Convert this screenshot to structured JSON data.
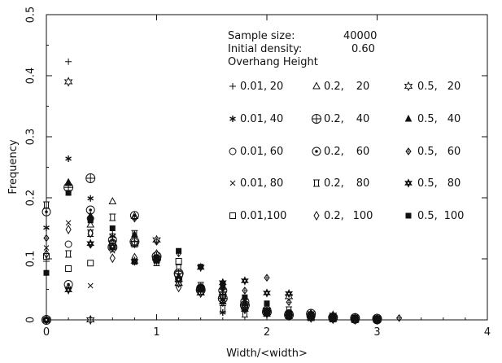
{
  "chart_data": {
    "type": "scatter",
    "xlabel": "Width/<width>",
    "ylabel": "Frequency",
    "xlim": [
      0,
      4
    ],
    "ylim": [
      0,
      0.5
    ],
    "xticks": [
      "0",
      "1",
      "2",
      "3",
      "4"
    ],
    "yticks": [
      "0",
      "0.1",
      "0.2",
      "0.3",
      "0.4",
      "0.5"
    ],
    "grid": false,
    "annotations": {
      "sample_size_label": "Sample size:",
      "sample_size_value": "40000",
      "initial_density_label": "Initial density:",
      "initial_density_value": "0.60",
      "column_header": "Overhang  Height"
    },
    "legend_placement": "top-right",
    "legend_grid": [
      [
        {
          "marker": "plus",
          "overhang": "0.01,",
          "height": "20"
        },
        {
          "marker": "triangle-open",
          "overhang": "0.2,",
          "height": "20"
        },
        {
          "marker": "star-open",
          "overhang": "0.5,",
          "height": "20"
        }
      ],
      [
        {
          "marker": "asterisk",
          "overhang": "0.01,",
          "height": "40"
        },
        {
          "marker": "circle-plus",
          "overhang": "0.2,",
          "height": "40"
        },
        {
          "marker": "triangle-filled",
          "overhang": "0.5,",
          "height": "40"
        }
      ],
      [
        {
          "marker": "circle",
          "overhang": "0.01,",
          "height": "60"
        },
        {
          "marker": "circle-dot",
          "overhang": "0.2,",
          "height": "60"
        },
        {
          "marker": "diamond-plus",
          "overhang": "0.5,",
          "height": "60"
        }
      ],
      [
        {
          "marker": "cross",
          "overhang": "0.01,",
          "height": "80"
        },
        {
          "marker": "hourglass",
          "overhang": "0.2,",
          "height": "80"
        },
        {
          "marker": "star-filled",
          "overhang": "0.5,",
          "height": "80"
        }
      ],
      [
        {
          "marker": "square",
          "overhang": "0.01,",
          "height": "100"
        },
        {
          "marker": "diamond",
          "overhang": "0.2,",
          "height": "100"
        },
        {
          "marker": "square-filled",
          "overhang": "0.5,",
          "height": "100"
        }
      ]
    ],
    "series": [
      {
        "overhang": "0.01",
        "height": "20",
        "marker": "plus",
        "x": [
          0,
          0.2,
          0.4,
          0.6,
          0.8,
          1.0,
          1.2,
          1.4,
          1.6,
          1.8,
          2.0,
          2.2,
          2.4,
          2.6,
          2.8,
          3.0
        ],
        "y": [
          0.096,
          0.423,
          0.0,
          0.141,
          0.097,
          0.098,
          0.07,
          0.048,
          0.04,
          0.017,
          0.008,
          0.005,
          0.002,
          0.0,
          0.0,
          0.0
        ]
      },
      {
        "overhang": "0.01",
        "height": "40",
        "marker": "asterisk",
        "x": [
          0,
          0.2,
          0.4,
          0.6,
          0.8,
          1.0,
          1.2,
          1.4,
          1.6,
          1.8,
          2.0,
          2.2,
          2.4,
          2.6,
          2.8,
          3.0
        ],
        "y": [
          0.151,
          0.264,
          0.199,
          0.137,
          0.098,
          0.095,
          0.068,
          0.05,
          0.012,
          0.025,
          0.01,
          0.007,
          0.003,
          0.001,
          0.0,
          0.0
        ]
      },
      {
        "overhang": "0.01",
        "height": "60",
        "marker": "circle",
        "x": [
          0,
          0.2,
          0.4,
          0.6,
          0.8,
          1.0,
          1.2,
          1.4,
          1.6,
          1.8,
          2.0,
          2.2,
          2.4,
          2.6,
          2.8,
          3.0
        ],
        "y": [
          0.0,
          0.124,
          0.166,
          0.127,
          0.128,
          0.099,
          0.067,
          0.052,
          0.04,
          0.02,
          0.012,
          0.008,
          0.005,
          0.002,
          0.0,
          0.0
        ]
      },
      {
        "overhang": "0.01",
        "height": "80",
        "marker": "cross",
        "x": [
          0,
          0.2,
          0.4,
          0.6,
          0.8,
          1.0,
          1.2,
          1.4,
          1.6,
          1.8,
          2.0,
          2.2,
          2.4,
          2.6,
          2.8,
          3.0
        ],
        "y": [
          0.118,
          0.159,
          0.056,
          0.113,
          0.095,
          0.096,
          0.072,
          0.05,
          0.03,
          0.018,
          0.009,
          0.005,
          0.002,
          0.0,
          0.0,
          0.0
        ]
      },
      {
        "overhang": "0.01",
        "height": "100",
        "marker": "square",
        "x": [
          0,
          0.2,
          0.4,
          0.6,
          0.8,
          1.0,
          1.2,
          1.4,
          1.6,
          1.8,
          2.0,
          2.2,
          2.4,
          2.6,
          2.8,
          3.0
        ],
        "y": [
          0.104,
          0.084,
          0.093,
          0.125,
          0.124,
          0.101,
          0.096,
          0.052,
          0.042,
          0.022,
          0.014,
          0.008,
          0.004,
          0.002,
          0.0,
          0.0
        ]
      },
      {
        "overhang": "0.2",
        "height": "20",
        "marker": "triangle-open",
        "x": [
          0,
          0.2,
          0.4,
          0.6,
          0.8,
          1.0,
          1.2,
          1.4,
          1.6,
          1.8,
          2.0,
          2.2,
          2.4,
          2.6,
          2.8,
          3.0
        ],
        "y": [
          0.0,
          0.225,
          0.156,
          0.194,
          0.17,
          0.103,
          0.06,
          0.045,
          0.03,
          0.018,
          0.01,
          0.006,
          0.003,
          0.001,
          0.0,
          0.0
        ]
      },
      {
        "overhang": "0.2",
        "height": "40",
        "marker": "circle-plus",
        "x": [
          0,
          0.2,
          0.4,
          0.6,
          0.8,
          1.0,
          1.2,
          1.4,
          1.6,
          1.8,
          2.0,
          2.2,
          2.4,
          2.6,
          2.8,
          3.0
        ],
        "y": [
          0.0,
          0.217,
          0.232,
          0.119,
          0.128,
          0.104,
          0.076,
          0.049,
          0.035,
          0.024,
          0.013,
          0.008,
          0.01,
          0.004,
          0.003,
          0.002
        ]
      },
      {
        "overhang": "0.2",
        "height": "60",
        "marker": "circle-dot",
        "x": [
          0,
          0.2,
          0.4,
          0.6,
          0.8,
          1.0,
          1.2,
          1.4,
          1.6,
          1.8,
          2.0,
          2.2,
          2.4,
          2.6,
          2.8,
          3.0
        ],
        "y": [
          0.177,
          0.058,
          0.18,
          0.131,
          0.171,
          0.1,
          0.074,
          0.052,
          0.048,
          0.03,
          0.016,
          0.01,
          0.006,
          0.003,
          0.001,
          0.0
        ]
      },
      {
        "overhang": "0.2",
        "height": "80",
        "marker": "hourglass",
        "x": [
          0,
          0.2,
          0.4,
          0.6,
          0.8,
          1.0,
          1.2,
          1.4,
          1.6,
          1.8,
          2.0,
          2.2,
          2.4,
          2.6,
          2.8,
          3.0
        ],
        "y": [
          0.188,
          0.108,
          0.142,
          0.168,
          0.141,
          0.094,
          0.085,
          0.056,
          0.018,
          0.01,
          0.014,
          0.016,
          0.008,
          0.004,
          0.002,
          0.001
        ]
      },
      {
        "overhang": "0.2",
        "height": "100",
        "marker": "diamond",
        "x": [
          0,
          0.2,
          0.4,
          0.6,
          0.8,
          1.0,
          1.2,
          1.4,
          1.6,
          1.8,
          2.0,
          2.2,
          2.4,
          2.6,
          2.8,
          3.0
        ],
        "y": [
          0.108,
          0.148,
          0.142,
          0.101,
          0.102,
          0.108,
          0.053,
          0.044,
          0.029,
          0.017,
          0.01,
          0.006,
          0.003,
          0.001,
          0.0,
          0.0
        ]
      },
      {
        "overhang": "0.5",
        "height": "20",
        "marker": "star-open",
        "x": [
          0,
          0.2,
          0.4,
          0.6,
          0.8,
          1.0,
          1.2,
          1.4,
          1.6,
          1.8,
          2.0,
          2.2,
          2.4,
          2.6,
          2.8,
          3.0
        ],
        "y": [
          0.0,
          0.39,
          0.0,
          0.125,
          0.125,
          0.131,
          0.06,
          0.044,
          0.038,
          0.021,
          0.012,
          0.038,
          0.004,
          0.002,
          0.0,
          0.0
        ]
      },
      {
        "overhang": "0.5",
        "height": "40",
        "marker": "triangle-filled",
        "x": [
          0,
          0.2,
          0.4,
          0.6,
          0.8,
          1.0,
          1.2,
          1.4,
          1.6,
          1.8,
          2.0,
          2.2,
          2.4,
          2.6,
          2.8,
          3.0
        ],
        "y": [
          0.0,
          0.224,
          0.171,
          0.119,
          0.14,
          0.098,
          0.071,
          0.055,
          0.054,
          0.03,
          0.016,
          0.01,
          0.006,
          0.008,
          0.003,
          0.001
        ]
      },
      {
        "overhang": "0.5",
        "height": "60",
        "marker": "diamond-plus",
        "x": [
          0,
          0.2,
          0.4,
          0.6,
          0.8,
          1.0,
          1.2,
          1.4,
          1.6,
          1.8,
          2.0,
          2.2,
          2.4,
          2.6,
          2.8,
          3.0,
          3.2
        ],
        "y": [
          0.134,
          0.053,
          0.123,
          0.12,
          0.166,
          0.128,
          0.109,
          0.05,
          0.031,
          0.048,
          0.069,
          0.029,
          0.011,
          0.005,
          0.004,
          0.003,
          0.003
        ]
      },
      {
        "overhang": "0.5",
        "height": "80",
        "marker": "star-filled",
        "x": [
          0,
          0.2,
          0.4,
          0.6,
          0.8,
          1.0,
          1.2,
          1.4,
          1.6,
          1.8,
          2.0,
          2.2,
          2.4,
          2.6,
          2.8,
          3.0
        ],
        "y": [
          0.0,
          0.049,
          0.125,
          0.12,
          0.096,
          0.1,
          0.066,
          0.086,
          0.061,
          0.064,
          0.044,
          0.043,
          0.01,
          0.008,
          0.004,
          0.002
        ]
      },
      {
        "overhang": "0.5",
        "height": "100",
        "marker": "square-filled",
        "x": [
          0,
          0.2,
          0.4,
          0.6,
          0.8,
          1.0,
          1.2,
          1.4,
          1.6,
          1.8,
          2.0,
          2.2,
          2.4,
          2.6,
          2.8,
          3.0
        ],
        "y": [
          0.077,
          0.208,
          0.163,
          0.15,
          0.095,
          0.097,
          0.113,
          0.087,
          0.059,
          0.037,
          0.027,
          0.012,
          0.009,
          0.006,
          0.004,
          0.003
        ]
      }
    ]
  }
}
